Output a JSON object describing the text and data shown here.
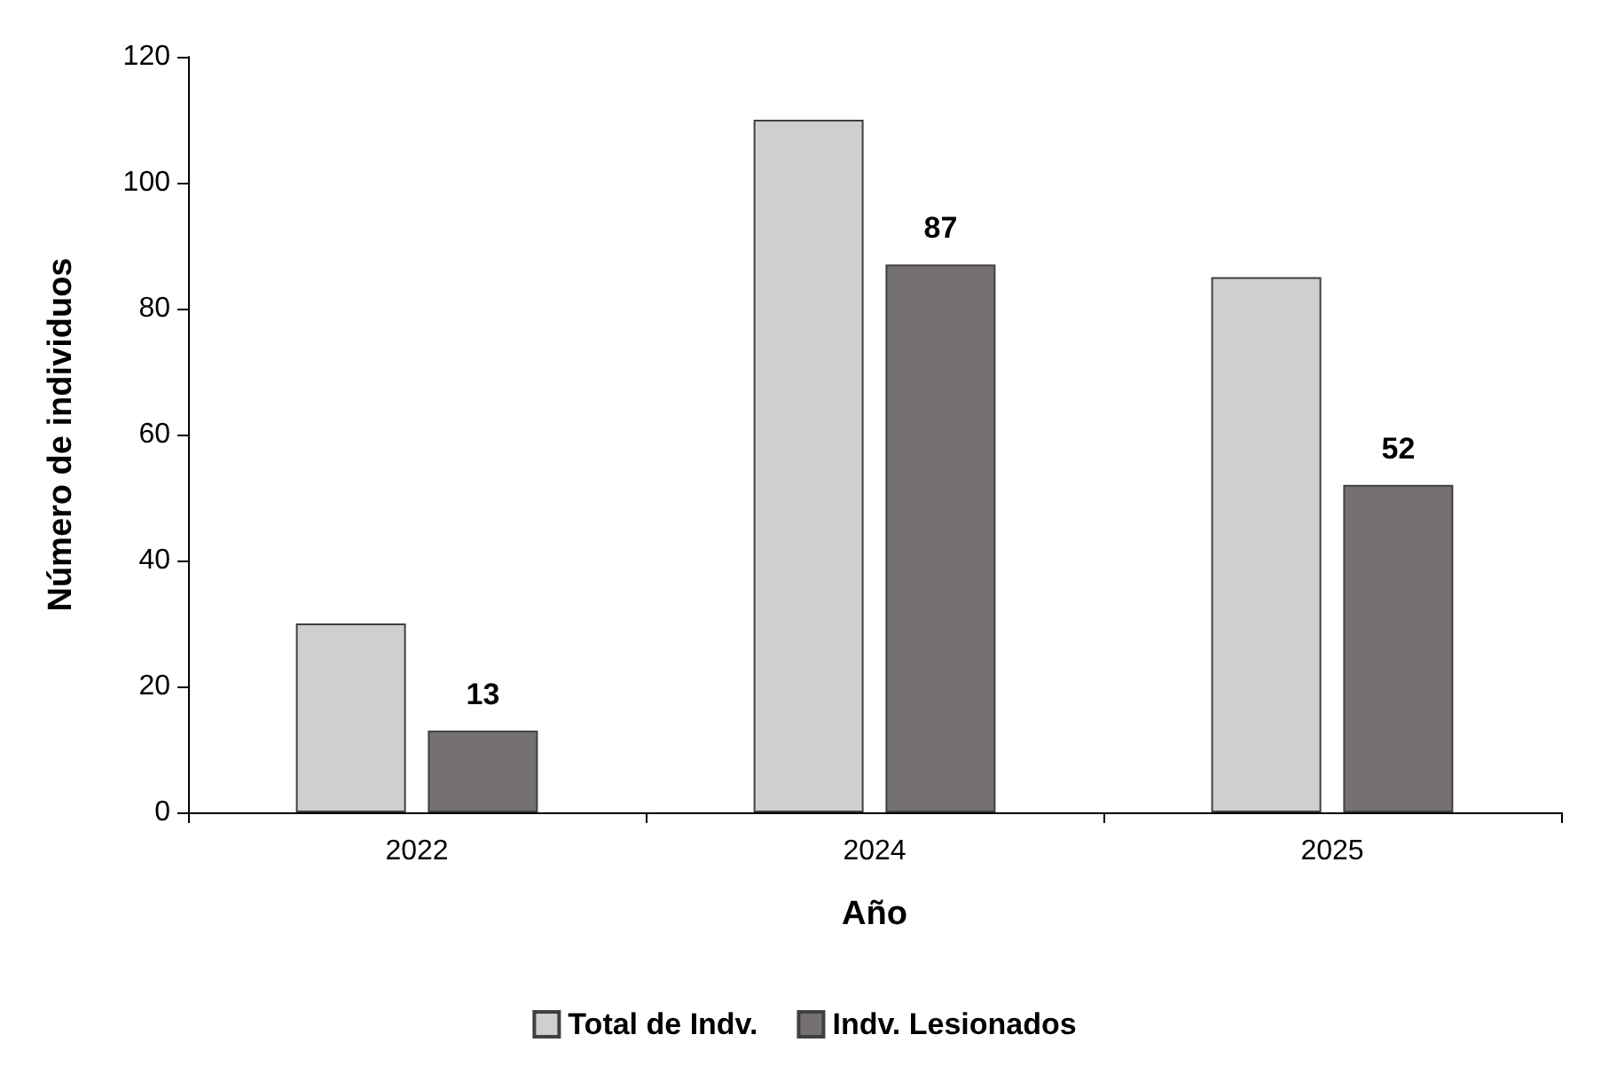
{
  "chart_data": {
    "type": "bar",
    "xlabel": "Año",
    "ylabel": "Número de individuos",
    "categories": [
      "2022",
      "2024",
      "2025"
    ],
    "series": [
      {
        "name": "Total de Indv.",
        "color": "#d0cece",
        "values": [
          30,
          110,
          85
        ]
      },
      {
        "name": "Indv. Lesionados",
        "color": "#767171",
        "values": [
          13,
          87,
          52
        ],
        "value_labels": [
          "13",
          "87",
          "52"
        ]
      }
    ],
    "ylim": [
      0,
      120
    ],
    "yticks": [
      0,
      20,
      40,
      60,
      80,
      100,
      120
    ],
    "grid": false,
    "legend": "bottom"
  }
}
